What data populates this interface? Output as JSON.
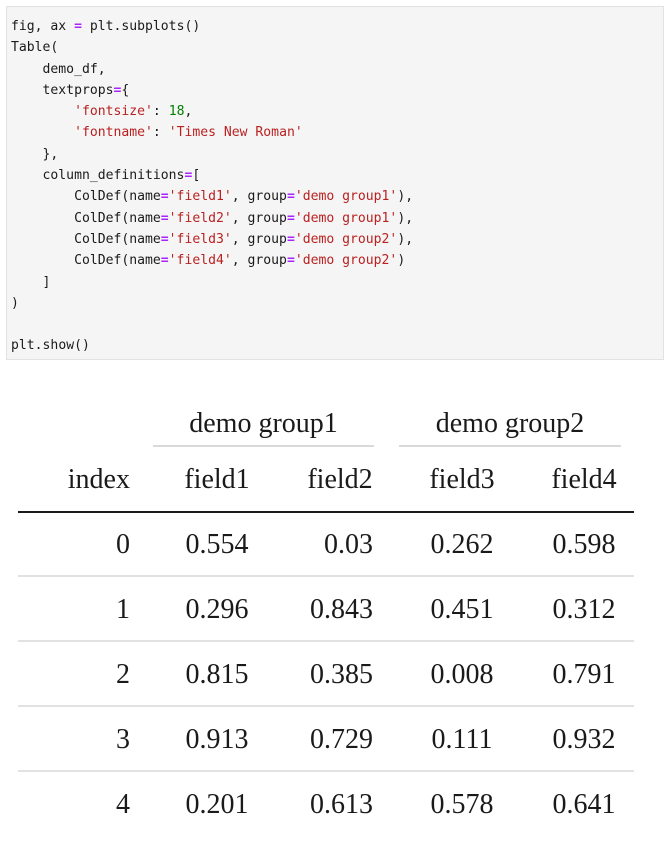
{
  "code": {
    "lines": [
      [
        {
          "t": "fig, ax ",
          "c": "plain"
        },
        {
          "t": "=",
          "c": "op"
        },
        {
          "t": " plt.subplots()",
          "c": "plain"
        }
      ],
      [
        {
          "t": "Table(",
          "c": "plain"
        }
      ],
      [
        {
          "t": "    demo_df,",
          "c": "plain"
        }
      ],
      [
        {
          "t": "    textprops",
          "c": "plain"
        },
        {
          "t": "=",
          "c": "op"
        },
        {
          "t": "{",
          "c": "plain"
        }
      ],
      [
        {
          "t": "        ",
          "c": "plain"
        },
        {
          "t": "'fontsize'",
          "c": "str"
        },
        {
          "t": ": ",
          "c": "plain"
        },
        {
          "t": "18",
          "c": "num"
        },
        {
          "t": ",",
          "c": "plain"
        }
      ],
      [
        {
          "t": "        ",
          "c": "plain"
        },
        {
          "t": "'fontname'",
          "c": "str"
        },
        {
          "t": ": ",
          "c": "plain"
        },
        {
          "t": "'Times New Roman'",
          "c": "str"
        }
      ],
      [
        {
          "t": "    },",
          "c": "plain"
        }
      ],
      [
        {
          "t": "    column_definitions",
          "c": "plain"
        },
        {
          "t": "=",
          "c": "op"
        },
        {
          "t": "[",
          "c": "plain"
        }
      ],
      [
        {
          "t": "        ColDef(name",
          "c": "plain"
        },
        {
          "t": "=",
          "c": "op"
        },
        {
          "t": "'field1'",
          "c": "str"
        },
        {
          "t": ", group",
          "c": "plain"
        },
        {
          "t": "=",
          "c": "op"
        },
        {
          "t": "'demo group1'",
          "c": "str"
        },
        {
          "t": "),",
          "c": "plain"
        }
      ],
      [
        {
          "t": "        ColDef(name",
          "c": "plain"
        },
        {
          "t": "=",
          "c": "op"
        },
        {
          "t": "'field2'",
          "c": "str"
        },
        {
          "t": ", group",
          "c": "plain"
        },
        {
          "t": "=",
          "c": "op"
        },
        {
          "t": "'demo group1'",
          "c": "str"
        },
        {
          "t": "),",
          "c": "plain"
        }
      ],
      [
        {
          "t": "        ColDef(name",
          "c": "plain"
        },
        {
          "t": "=",
          "c": "op"
        },
        {
          "t": "'field3'",
          "c": "str"
        },
        {
          "t": ", group",
          "c": "plain"
        },
        {
          "t": "=",
          "c": "op"
        },
        {
          "t": "'demo group2'",
          "c": "str"
        },
        {
          "t": "),",
          "c": "plain"
        }
      ],
      [
        {
          "t": "        ColDef(name",
          "c": "plain"
        },
        {
          "t": "=",
          "c": "op"
        },
        {
          "t": "'field4'",
          "c": "str"
        },
        {
          "t": ", group",
          "c": "plain"
        },
        {
          "t": "=",
          "c": "op"
        },
        {
          "t": "'demo group2'",
          "c": "str"
        },
        {
          "t": ")",
          "c": "plain"
        }
      ],
      [
        {
          "t": "    ]",
          "c": "plain"
        }
      ],
      [
        {
          "t": ")",
          "c": "plain"
        }
      ],
      [
        {
          "t": "",
          "c": "plain"
        }
      ],
      [
        {
          "t": "plt.",
          "c": "plain"
        },
        {
          "t": "show",
          "c": "fn"
        },
        {
          "t": "()",
          "c": "plain"
        }
      ]
    ]
  },
  "table": {
    "groups": [
      {
        "label": "demo group1",
        "columns": [
          "field1",
          "field2"
        ]
      },
      {
        "label": "demo group2",
        "columns": [
          "field3",
          "field4"
        ]
      }
    ],
    "index_header": "index",
    "columns": [
      "field1",
      "field2",
      "field3",
      "field4"
    ],
    "rows": [
      {
        "index": "0",
        "values": [
          "0.554",
          "0.03",
          "0.262",
          "0.598"
        ]
      },
      {
        "index": "1",
        "values": [
          "0.296",
          "0.843",
          "0.451",
          "0.312"
        ]
      },
      {
        "index": "2",
        "values": [
          "0.815",
          "0.385",
          "0.008",
          "0.791"
        ]
      },
      {
        "index": "3",
        "values": [
          "0.913",
          "0.729",
          "0.111",
          "0.932"
        ]
      },
      {
        "index": "4",
        "values": [
          "0.201",
          "0.613",
          "0.578",
          "0.641"
        ]
      }
    ]
  },
  "colors": {
    "code_background": "#f5f5f5",
    "operator": "#aa22ff",
    "string": "#ba2121",
    "number": "#008000",
    "row_divider": "#d9d9d9",
    "header_rule": "#1a1a1a"
  }
}
